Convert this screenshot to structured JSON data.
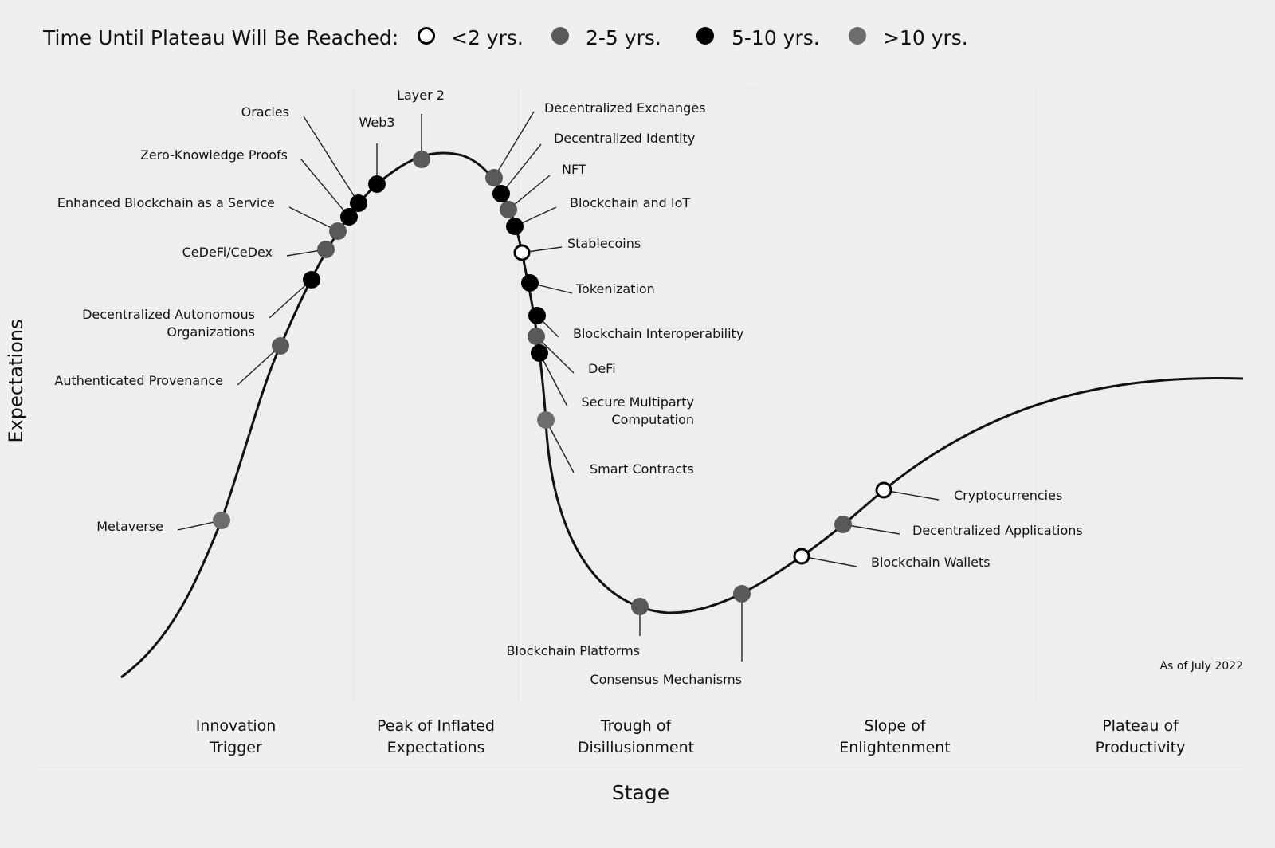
{
  "legend": {
    "title": "Time Until Plateau Will Be Reached:",
    "items": [
      {
        "key": "lt2",
        "label": "<2 yrs.",
        "fill": "#ffffff",
        "stroke": "#000000"
      },
      {
        "key": "2to5",
        "label": "2-5 yrs.",
        "fill": "#595959",
        "stroke": "none"
      },
      {
        "key": "5to10",
        "label": "5-10 yrs.",
        "fill": "#000000",
        "stroke": "none"
      },
      {
        "key": "gt10",
        "label": ">10 yrs.",
        "fill": "#6e6e6e",
        "stroke": "none"
      }
    ]
  },
  "axes": {
    "ylabel": "Expectations",
    "xlabel": "Stage"
  },
  "stages": [
    {
      "lines": [
        "Innovation",
        "Trigger"
      ]
    },
    {
      "lines": [
        "Peak of Inflated",
        "Expectations"
      ]
    },
    {
      "lines": [
        "Trough of",
        "Disillusionment"
      ]
    },
    {
      "lines": [
        "Slope of",
        "Enlightenment"
      ]
    },
    {
      "lines": [
        "Plateau of",
        "Productivity"
      ]
    }
  ],
  "note": "As of July 2022",
  "technologies": [
    {
      "lines": [
        "Metaverse"
      ],
      "category": "gt10"
    },
    {
      "lines": [
        "Authenticated Provenance"
      ],
      "category": "2to5"
    },
    {
      "lines": [
        "Decentralized Autonomous",
        "Organizations"
      ],
      "category": "5to10"
    },
    {
      "lines": [
        "CeDeFi/CeDex"
      ],
      "category": "2to5"
    },
    {
      "lines": [
        "Enhanced Blockchain as a Service"
      ],
      "category": "2to5"
    },
    {
      "lines": [
        "Zero-Knowledge Proofs"
      ],
      "category": "5to10"
    },
    {
      "lines": [
        "Oracles"
      ],
      "category": "5to10"
    },
    {
      "lines": [
        "Web3"
      ],
      "category": "5to10"
    },
    {
      "lines": [
        "Layer 2"
      ],
      "category": "2to5"
    },
    {
      "lines": [
        "Decentralized Exchanges"
      ],
      "category": "2to5"
    },
    {
      "lines": [
        "Decentralized Identity"
      ],
      "category": "5to10"
    },
    {
      "lines": [
        "NFT"
      ],
      "category": "2to5"
    },
    {
      "lines": [
        "Blockchain and IoT"
      ],
      "category": "5to10"
    },
    {
      "lines": [
        "Stablecoins"
      ],
      "category": "lt2"
    },
    {
      "lines": [
        "Tokenization"
      ],
      "category": "5to10"
    },
    {
      "lines": [
        "Blockchain Interoperability"
      ],
      "category": "5to10"
    },
    {
      "lines": [
        "DeFi"
      ],
      "category": "2to5"
    },
    {
      "lines": [
        "Secure Multiparty",
        "Computation"
      ],
      "category": "5to10"
    },
    {
      "lines": [
        "Smart Contracts"
      ],
      "category": "gt10"
    },
    {
      "lines": [
        "Blockchain Platforms"
      ],
      "category": "2to5"
    },
    {
      "lines": [
        "Consensus Mechanisms"
      ],
      "category": "2to5"
    },
    {
      "lines": [
        "Blockchain Wallets"
      ],
      "category": "lt2"
    },
    {
      "lines": [
        "Decentralized Applications"
      ],
      "category": "2to5"
    },
    {
      "lines": [
        "Cryptocurrencies"
      ],
      "category": "lt2"
    }
  ]
}
